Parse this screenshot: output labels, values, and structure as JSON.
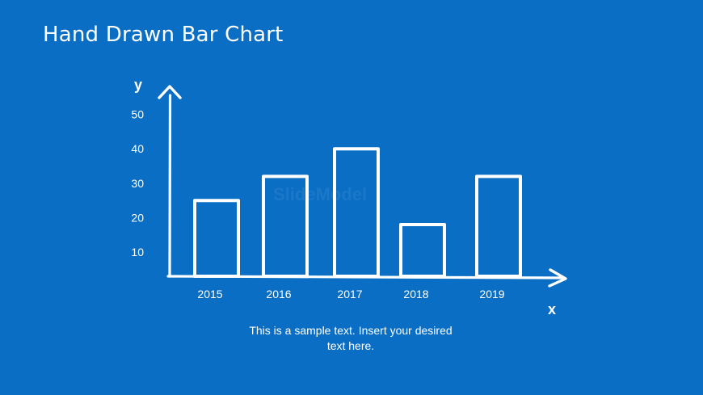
{
  "title": "Hand Drawn Bar Chart",
  "caption": "This is a sample text. Insert your desired text here.",
  "watermark": "SlideModel",
  "colors": {
    "background": "#0a6ec4",
    "stroke": "#ffffff"
  },
  "chart_data": {
    "type": "bar",
    "title": "",
    "xlabel": "x",
    "ylabel": "y",
    "categories": [
      "2015",
      "2016",
      "2017",
      "2018",
      "2019"
    ],
    "values": [
      25,
      32,
      40,
      18,
      32
    ],
    "yticks": [
      10,
      20,
      30,
      40,
      50
    ],
    "ylim": [
      3,
      56
    ],
    "grid": false,
    "legend": "none"
  }
}
